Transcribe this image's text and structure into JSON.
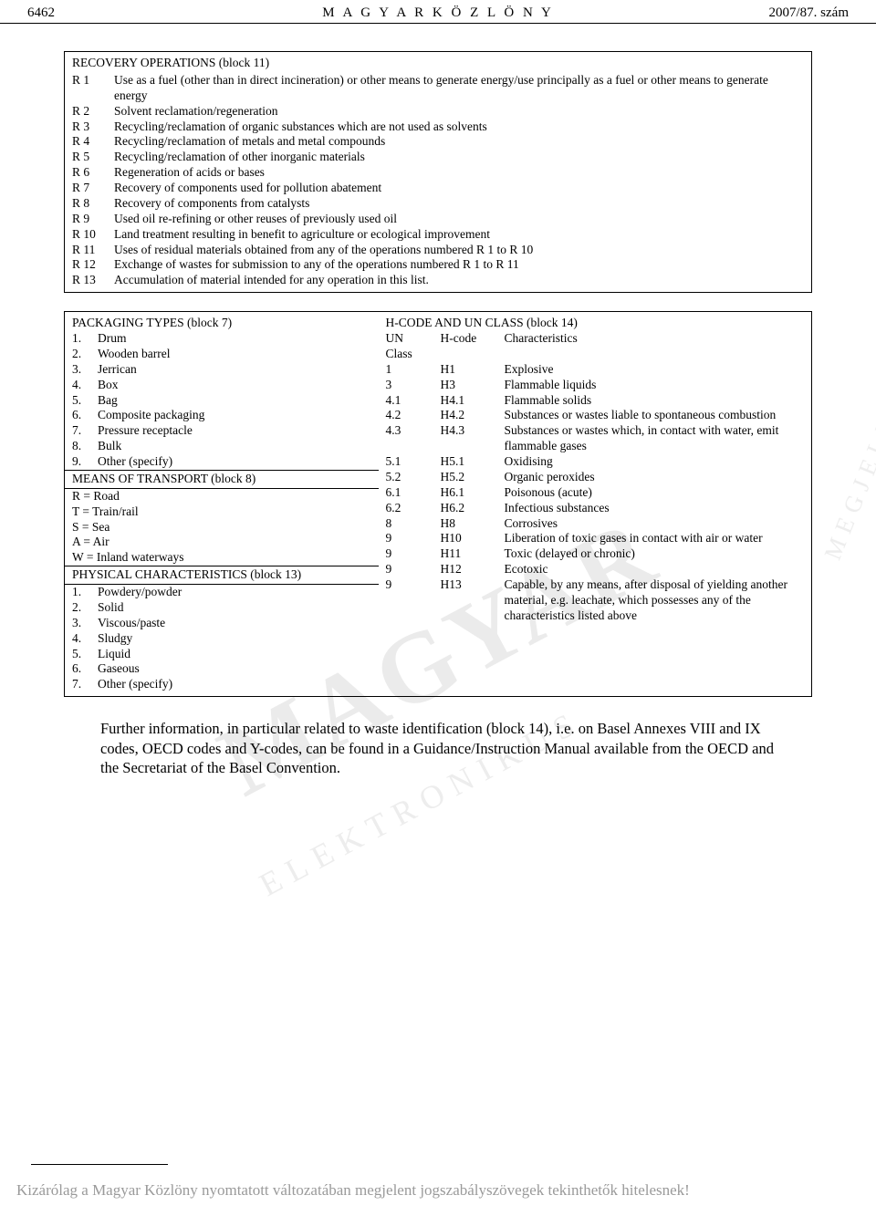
{
  "header": {
    "page_number": "6462",
    "title": "M A G Y A R   K Ö Z L Ö N Y",
    "issue": "2007/87. szám"
  },
  "recovery": {
    "title": "RECOVERY OPERATIONS (block 11)",
    "rows": [
      {
        "code": "R 1",
        "desc": "Use as a fuel (other than in direct incineration) or other means to generate energy/use principally as a fuel or other means to generate energy"
      },
      {
        "code": "R 2",
        "desc": "Solvent reclamation/regeneration"
      },
      {
        "code": "R 3",
        "desc": "Recycling/reclamation of organic substances which are not used as solvents"
      },
      {
        "code": "R 4",
        "desc": "Recycling/reclamation of metals and metal compounds"
      },
      {
        "code": "R 5",
        "desc": "Recycling/reclamation of other inorganic materials"
      },
      {
        "code": "R 6",
        "desc": "Regeneration of acids or bases"
      },
      {
        "code": "R 7",
        "desc": "Recovery of components used for pollution abatement"
      },
      {
        "code": "R 8",
        "desc": "Recovery of components from catalysts"
      },
      {
        "code": "R 9",
        "desc": "Used oil re-refining or other reuses of previously used oil"
      },
      {
        "code": "R 10",
        "desc": "Land treatment resulting in benefit to agriculture or ecological improvement"
      },
      {
        "code": "R 11",
        "desc": "Uses of residual materials obtained from any of the operations numbered R 1 to R 10"
      },
      {
        "code": "R 12",
        "desc": "Exchange of wastes for submission to any of the operations numbered R 1 to R 11"
      },
      {
        "code": "R 13",
        "desc": "Accumulation of material intended for any operation in this list."
      }
    ]
  },
  "packaging": {
    "title": "PACKAGING TYPES (block 7)",
    "items": [
      {
        "n": "1.",
        "t": "Drum"
      },
      {
        "n": "2.",
        "t": "Wooden barrel"
      },
      {
        "n": "3.",
        "t": "Jerrican"
      },
      {
        "n": "4.",
        "t": "Box"
      },
      {
        "n": "5.",
        "t": "Bag"
      },
      {
        "n": "6.",
        "t": "Composite packaging"
      },
      {
        "n": "7.",
        "t": "Pressure receptacle"
      },
      {
        "n": "8.",
        "t": "Bulk"
      },
      {
        "n": "9.",
        "t": "Other (specify)"
      }
    ]
  },
  "transport": {
    "title": "MEANS OF TRANSPORT (block 8)",
    "items": [
      "R = Road",
      "T = Train/rail",
      "S = Sea",
      "A = Air",
      "W = Inland waterways"
    ]
  },
  "physical": {
    "title": "PHYSICAL CHARACTERISTICS (block 13)",
    "items": [
      {
        "n": "1.",
        "t": "Powdery/powder"
      },
      {
        "n": "2.",
        "t": "Solid"
      },
      {
        "n": "3.",
        "t": "Viscous/paste"
      },
      {
        "n": "4.",
        "t": "Sludgy"
      },
      {
        "n": "5.",
        "t": "Liquid"
      },
      {
        "n": "6.",
        "t": "Gaseous"
      },
      {
        "n": "7.",
        "t": "Other (specify)"
      }
    ]
  },
  "hcode": {
    "title": "H-CODE AND UN CLASS (block 14)",
    "h1": "UN Class",
    "h2": "H-code",
    "h3": "Characteristics",
    "rows": [
      {
        "c1": "1",
        "c2": "H1",
        "c3": "Explosive"
      },
      {
        "c1": "3",
        "c2": "H3",
        "c3": "Flammable liquids"
      },
      {
        "c1": "4.1",
        "c2": "H4.1",
        "c3": "Flammable solids"
      },
      {
        "c1": "4.2",
        "c2": "H4.2",
        "c3": "Substances or wastes liable to spontaneous combustion"
      },
      {
        "c1": "4.3",
        "c2": "H4.3",
        "c3": "Substances or wastes which, in contact with water, emit flammable gases"
      },
      {
        "c1": "5.1",
        "c2": "H5.1",
        "c3": "Oxidising"
      },
      {
        "c1": "5.2",
        "c2": "H5.2",
        "c3": "Organic peroxides"
      },
      {
        "c1": "6.1",
        "c2": "H6.1",
        "c3": "Poisonous (acute)"
      },
      {
        "c1": "6.2",
        "c2": "H6.2",
        "c3": "Infectious substances"
      },
      {
        "c1": "8",
        "c2": "H8",
        "c3": "Corrosives"
      },
      {
        "c1": "9",
        "c2": "H10",
        "c3": "Liberation of toxic gases in contact with air or water"
      },
      {
        "c1": "9",
        "c2": "H11",
        "c3": "Toxic (delayed or chronic)"
      },
      {
        "c1": "9",
        "c2": "H12",
        "c3": "Ecotoxic"
      },
      {
        "c1": "9",
        "c2": "H13",
        "c3": "Capable, by any means, after disposal of yielding another material, e.g. leachate, which possesses any of the characteristics listed above"
      }
    ]
  },
  "paragraph": "Further information, in particular related to waste identification (block 14), i.e. on Basel Annexes VIII and IX codes, OECD codes and Y-codes, can be found in a Guidance/Instruction Manual available from the OECD and the Secretariat of the Basel Convention.",
  "footer": "Kizárólag a Magyar Közlöny nyomtatott változatában megjelent jogszabályszövegek tekinthetők hitelesnek!",
  "watermark": {
    "main": "MAGYAR",
    "sub": "ELEKTRONIKUS",
    "side": "MEGJELENÉS"
  }
}
